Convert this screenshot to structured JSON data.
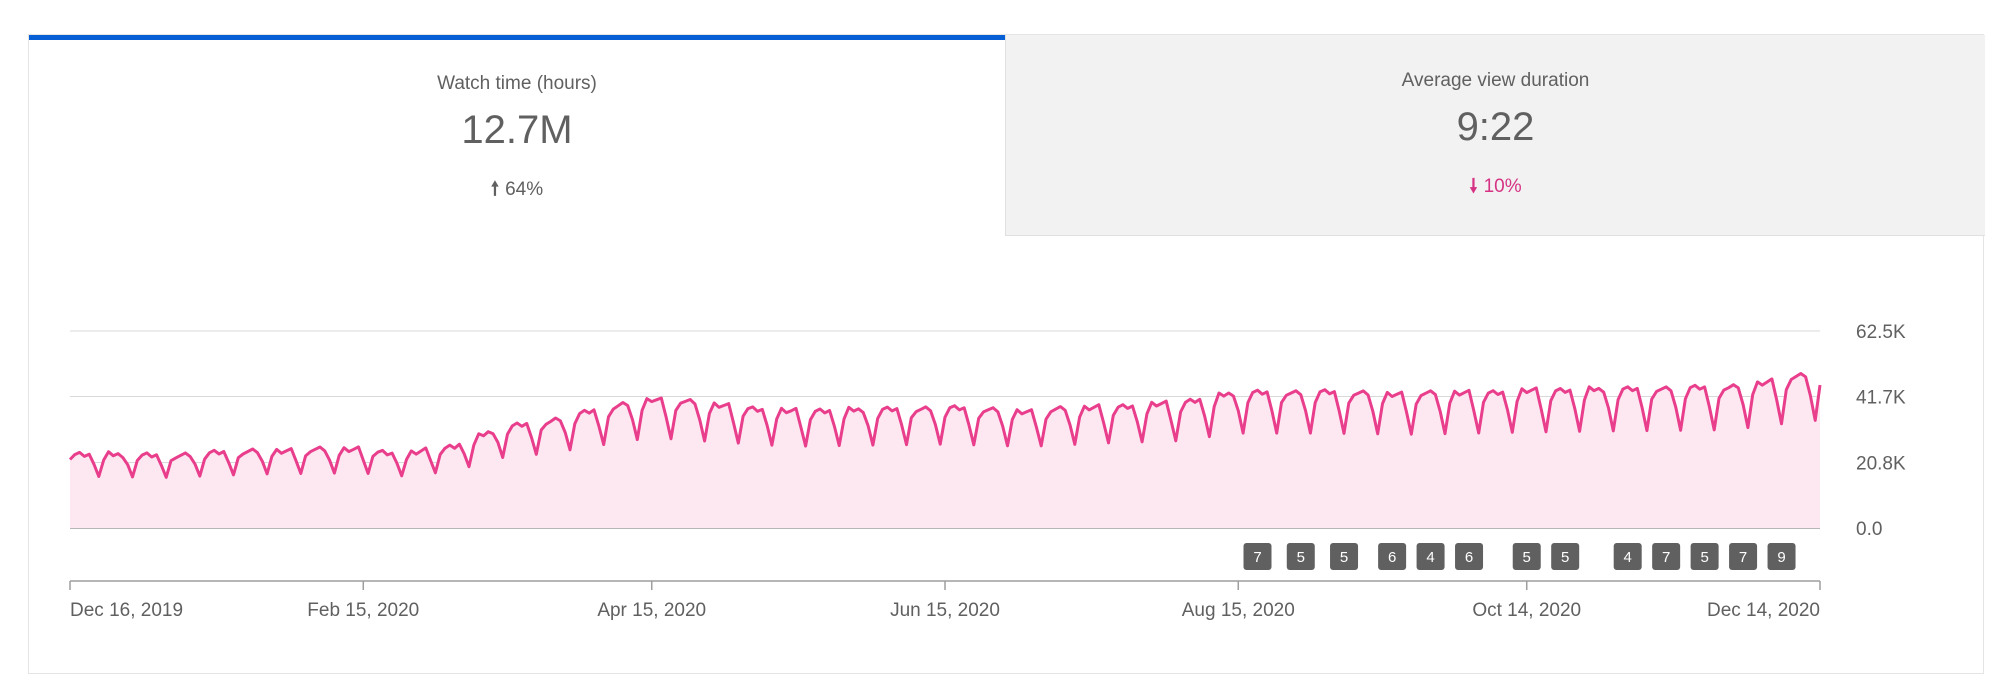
{
  "tabs": [
    {
      "label": "Watch time (hours)",
      "value": "12.7M",
      "change_arrow": "🠕",
      "change": "64%",
      "direction": "up"
    },
    {
      "label": "Average view duration",
      "value": "9:22",
      "change_arrow": "🠗",
      "change": "10%",
      "direction": "down"
    }
  ],
  "colors": {
    "accent": "#065fd4",
    "line": "#e83e8c",
    "fill": "#fde8f2",
    "badge": "#606060",
    "down": "#d63384"
  },
  "chart_data": {
    "type": "area",
    "title": "Watch time (hours)",
    "xlabel": "",
    "ylabel": "",
    "ylim": [
      0,
      62500
    ],
    "y_ticks": [
      {
        "value": 0,
        "label": "0.0"
      },
      {
        "value": 20800,
        "label": "20.8K"
      },
      {
        "value": 41700,
        "label": "41.7K"
      },
      {
        "value": 62500,
        "label": "62.5K"
      }
    ],
    "x_ticks": [
      {
        "day": 0,
        "label": "Dec 16, 2019"
      },
      {
        "day": 61,
        "label": "Feb 15, 2020"
      },
      {
        "day": 121,
        "label": "Apr 15, 2020"
      },
      {
        "day": 182,
        "label": "Jun 15, 2020"
      },
      {
        "day": 243,
        "label": "Aug 15, 2020"
      },
      {
        "day": 303,
        "label": "Oct 14, 2020"
      },
      {
        "day": 364,
        "label": "Dec 14, 2020"
      }
    ],
    "x_range": [
      0,
      364
    ],
    "series": [
      {
        "name": "Watch time (hours)",
        "knots": [
          [
            0,
            23500
          ],
          [
            20,
            23000
          ],
          [
            40,
            24500
          ],
          [
            60,
            25000
          ],
          [
            70,
            23500
          ],
          [
            80,
            26000
          ],
          [
            90,
            32000
          ],
          [
            100,
            34000
          ],
          [
            110,
            37500
          ],
          [
            121,
            41000
          ],
          [
            135,
            39000
          ],
          [
            150,
            37000
          ],
          [
            165,
            37500
          ],
          [
            182,
            38000
          ],
          [
            200,
            37000
          ],
          [
            215,
            38500
          ],
          [
            230,
            39500
          ],
          [
            243,
            43000
          ],
          [
            260,
            43000
          ],
          [
            280,
            42500
          ],
          [
            303,
            43500
          ],
          [
            320,
            44000
          ],
          [
            345,
            44500
          ],
          [
            355,
            47000
          ],
          [
            364,
            49000
          ]
        ],
        "weekly_dip": 12000
      }
    ],
    "annotations": [
      {
        "day": 247,
        "label": "7"
      },
      {
        "day": 256,
        "label": "5"
      },
      {
        "day": 265,
        "label": "5"
      },
      {
        "day": 275,
        "label": "6"
      },
      {
        "day": 283,
        "label": "4"
      },
      {
        "day": 291,
        "label": "6"
      },
      {
        "day": 303,
        "label": "5"
      },
      {
        "day": 311,
        "label": "5"
      },
      {
        "day": 324,
        "label": "4"
      },
      {
        "day": 332,
        "label": "7"
      },
      {
        "day": 340,
        "label": "5"
      },
      {
        "day": 348,
        "label": "7"
      },
      {
        "day": 356,
        "label": "9"
      }
    ]
  }
}
